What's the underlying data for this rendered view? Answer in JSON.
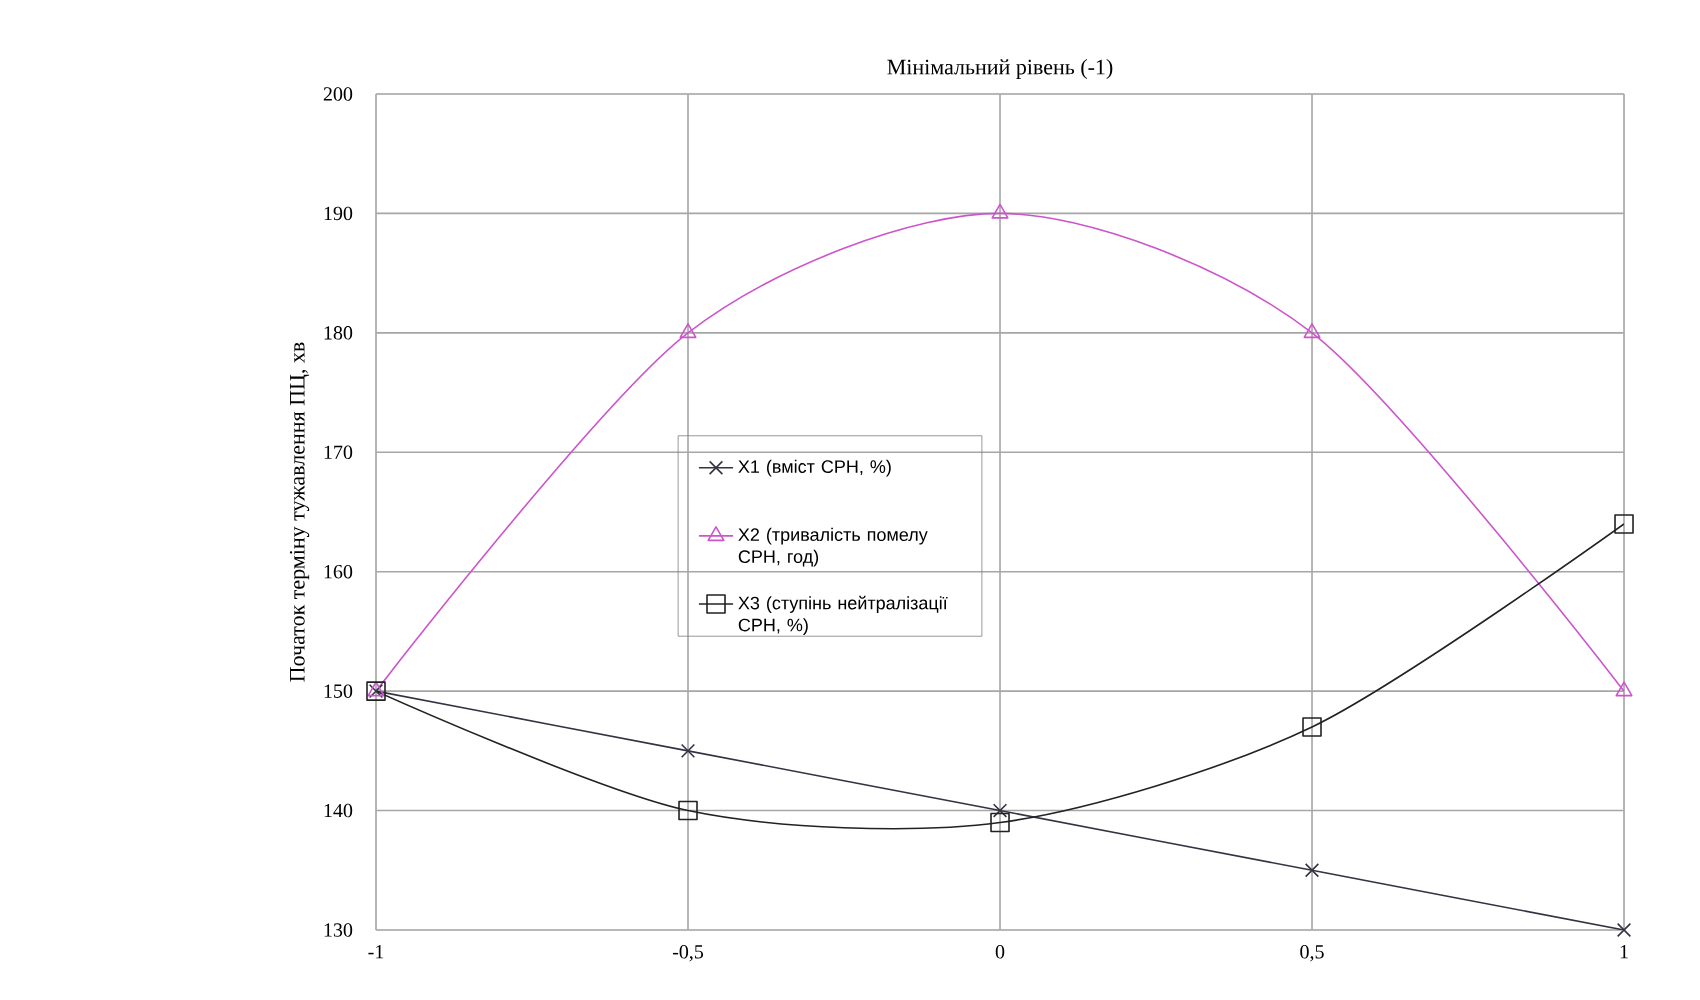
{
  "chart_data": {
    "type": "line",
    "title": "Мінімальний рівень (-1)",
    "ylabel": "Початок терміну тужавлення ПЦ, хв",
    "x": [
      -1,
      -0.5,
      0,
      0.5,
      1
    ],
    "series": [
      {
        "name": "X1 (вміст СРН, %)",
        "color": "#333344",
        "marker": "cross",
        "values": [
          150,
          145,
          140,
          135,
          130
        ]
      },
      {
        "name": "X2 (тривалість помелу СРН, год)",
        "color": "#cc55cc",
        "marker": "triangle",
        "values": [
          150,
          180,
          190,
          180,
          150
        ]
      },
      {
        "name": "X3 (ступінь нейтралізації СРН, %)",
        "color": "#222222",
        "marker": "square",
        "values": [
          150,
          140,
          139,
          147,
          164
        ]
      }
    ],
    "xlim": [
      -1,
      1
    ],
    "ylim": [
      130,
      200
    ],
    "xticks": [
      {
        "value": -1,
        "label": "-1"
      },
      {
        "value": -0.5,
        "label": "-0,5"
      },
      0,
      {
        "value": 0.5,
        "label": "0,5"
      },
      1
    ],
    "yticks": [
      130,
      140,
      150,
      160,
      170,
      180,
      190,
      200
    ],
    "grid": true,
    "legend": "center"
  }
}
